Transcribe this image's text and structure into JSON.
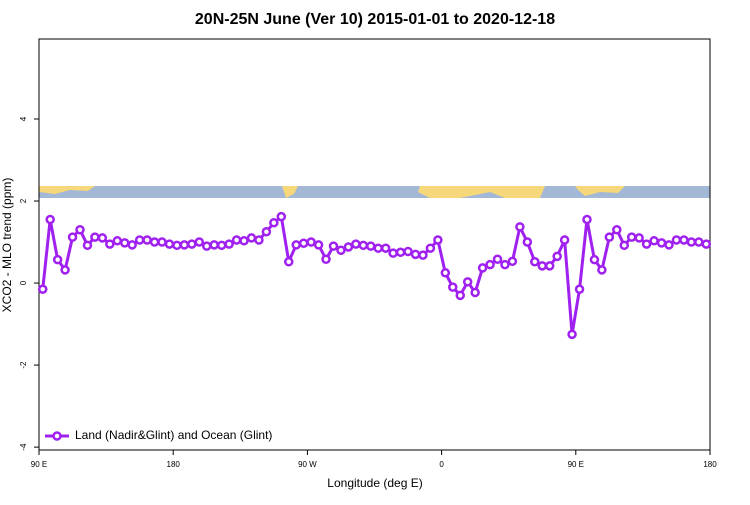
{
  "chart_data": {
    "type": "line",
    "title": "20N-25N June (Ver 10)   2015-01-01 to 2020-12-18",
    "x_label": "Longitude (deg E)",
    "y_label": "XCO2 - MLO trend (ppm)",
    "xlim": [
      90,
      540
    ],
    "ylim": [
      -4.07,
      5.95
    ],
    "xticks": [
      {
        "value": 90,
        "label": "90 E"
      },
      180,
      {
        "value": 270,
        "label": "90 W"
      },
      {
        "value": 360,
        "label": "0"
      },
      {
        "value": 450,
        "label": "90 E"
      },
      {
        "value": 540,
        "label": "180"
      }
    ],
    "yticks": [
      -4,
      -2,
      0,
      2,
      4
    ],
    "legend": "bottom-left",
    "x": [
      92.5,
      97.5,
      102.5,
      107.5,
      112.5,
      117.5,
      122.5,
      127.5,
      132.5,
      137.5,
      142.5,
      147.5,
      152.5,
      157.5,
      162.5,
      167.5,
      172.5,
      177.5,
      182.5,
      187.5,
      192.5,
      197.5,
      202.5,
      207.5,
      212.5,
      217.5,
      222.5,
      227.5,
      232.5,
      237.5,
      242.5,
      247.5,
      252.5,
      257.5,
      262.5,
      267.5,
      272.5,
      277.5,
      282.5,
      287.5,
      292.5,
      297.5,
      302.5,
      307.5,
      312.5,
      317.5,
      322.5,
      327.5,
      332.5,
      337.5,
      342.5,
      347.5,
      352.5,
      357.5,
      362.5,
      367.5,
      372.5,
      377.5,
      382.5,
      387.5,
      392.5,
      397.5,
      402.5,
      407.5,
      412.5,
      417.5,
      422.5,
      427.5,
      432.5,
      437.5,
      442.5,
      447.5,
      452.5,
      457.5,
      462.5,
      467.5,
      472.5,
      477.5,
      482.5,
      487.5,
      492.5,
      497.5,
      502.5,
      507.5,
      512.5,
      517.5,
      522.5,
      527.5,
      532.5,
      537.5
    ],
    "series": [
      {
        "name": "Land (Nadir&Glint) and Ocean (Glint)",
        "color": "#a020f0",
        "values": [
          -0.15,
          1.55,
          0.57,
          0.32,
          1.12,
          1.3,
          0.92,
          1.12,
          1.1,
          0.95,
          1.03,
          0.98,
          0.93,
          1.05,
          1.05,
          1.0,
          1.0,
          0.95,
          0.92,
          0.93,
          0.95,
          1.0,
          0.9,
          0.93,
          0.92,
          0.95,
          1.05,
          1.03,
          1.1,
          1.05,
          1.25,
          1.47,
          1.62,
          0.52,
          0.93,
          0.97,
          1.0,
          0.93,
          0.58,
          0.9,
          0.8,
          0.88,
          0.95,
          0.92,
          0.9,
          0.85,
          0.85,
          0.73,
          0.75,
          0.77,
          0.7,
          0.68,
          0.85,
          1.05,
          0.25,
          -0.1,
          -0.3,
          0.03,
          -0.23,
          0.37,
          0.45,
          0.58,
          0.45,
          0.53,
          1.37,
          1.0,
          0.52,
          0.42,
          0.42,
          0.65,
          1.05,
          -1.25,
          -0.15,
          1.55,
          0.57,
          0.32,
          1.12,
          1.3,
          0.92,
          1.12,
          1.1,
          0.95,
          1.03,
          0.98,
          0.93,
          1.05,
          1.05,
          1.0,
          1.0,
          0.95
        ]
      }
    ]
  }
}
